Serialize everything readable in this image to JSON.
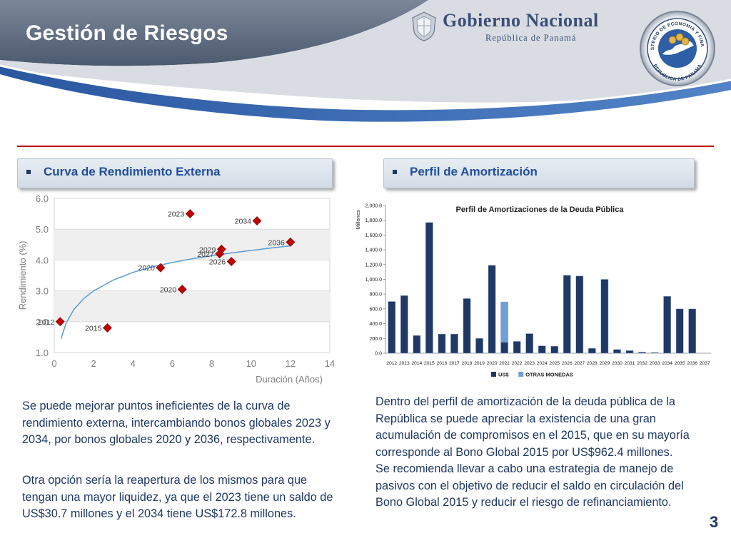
{
  "slide": {
    "title": "Gestión de Riesgos",
    "page_number": "3"
  },
  "header": {
    "gov_name": "Gobierno Nacional",
    "gov_sub": "República de Panamá",
    "seal_top_text": "MINISTERIO DE ECONOMIA Y FINANZAS",
    "seal_bottom_text": "REPUBLICA DE PANAMA",
    "colors": {
      "title_bar": "#5c6b80",
      "swoosh_blue": "#2e5ea6",
      "divider": "#c00000"
    }
  },
  "left_section": {
    "header": "Curva de Rendimiento Externa",
    "paragraph1": "Se puede mejorar puntos ineficientes de la curva de rendimiento externa, intercambiando bonos globales 2023 y 2034, por bonos globales 2020 y 2036, respectivamente.",
    "paragraph2": "Otra opción sería la reapertura de los mismos para que tengan una mayor liquidez, ya que  el 2023 tiene un saldo de US$30.7 millones y el 2034 tiene US$172.8 millones."
  },
  "right_section": {
    "header": "Perfil  de Amortización",
    "paragraph1": "Dentro del perfil de amortización de la deuda pública de la República se puede apreciar la existencia de una gran acumulación de compromisos en el 2015, que en su mayoría corresponde al Bono Global 2015 por US$962.4 millones. Se recomienda llevar  a cabo una estrategia de manejo de pasivos con el objetivo de reducir el saldo en circulación del Bono Global 2015 y reducir el riesgo de refinanciamiento."
  },
  "chart_data": [
    {
      "type": "scatter",
      "title": "",
      "xlabel": "Duración (Años)",
      "ylabel": "Rendimiento (%)",
      "xlim": [
        0,
        14
      ],
      "ylim": [
        1.0,
        6.0
      ],
      "x_ticks": [
        "0",
        "2",
        "4",
        "6",
        "8",
        "10",
        "12",
        "14"
      ],
      "y_ticks": [
        "1.0",
        "2.0",
        "3.0",
        "4.0",
        "5.0",
        "6.0"
      ],
      "grid": "horizontal bands",
      "point_color": "#c00000",
      "curve_color": "#5b9bd5",
      "points": [
        {
          "label": "2012",
          "x": 0.3,
          "y": 2.0
        },
        {
          "label": "2015",
          "x": 2.7,
          "y": 1.8
        },
        {
          "label": "2020",
          "x": 5.4,
          "y": 3.75
        },
        {
          "label": "2020",
          "x": 6.5,
          "y": 3.05
        },
        {
          "label": "2023",
          "x": 6.9,
          "y": 5.5
        },
        {
          "label": "2029",
          "x": 8.5,
          "y": 4.35
        },
        {
          "label": "2027",
          "x": 8.4,
          "y": 4.2
        },
        {
          "label": "2026",
          "x": 9.0,
          "y": 3.95
        },
        {
          "label": "2034",
          "x": 10.3,
          "y": 5.27
        },
        {
          "label": "2036",
          "x": 12.0,
          "y": 4.58
        }
      ],
      "trend_curve": {
        "x": [
          0.35,
          0.6,
          1.0,
          1.5,
          2.0,
          3.0,
          4.0,
          5.0,
          6.0,
          7.0,
          8.0,
          9.0,
          10.0,
          11.0,
          12.0
        ],
        "y": [
          1.45,
          1.95,
          2.4,
          2.75,
          3.0,
          3.35,
          3.6,
          3.78,
          3.92,
          4.04,
          4.14,
          4.23,
          4.31,
          4.39,
          4.46
        ]
      }
    },
    {
      "type": "bar",
      "stacked": true,
      "title": "Perfil de Amortizaciones de la Deuda Pública",
      "xlabel": "",
      "ylabel": "Millones",
      "ylim": [
        0,
        2000
      ],
      "y_ticks": [
        "0.0",
        "200.0",
        "400.0",
        "600.0",
        "800.0",
        "1,000.0",
        "1,200.0",
        "1,400.0",
        "1,600.0",
        "1,800.0",
        "2,000.0"
      ],
      "legend_position": "bottom",
      "categories": [
        "2012",
        "2013",
        "2014",
        "2015",
        "2016",
        "2017",
        "2018",
        "2019",
        "2020",
        "2021",
        "2022",
        "2023",
        "2024",
        "2025",
        "2026",
        "2027",
        "2028",
        "2029",
        "2030",
        "2031",
        "2032",
        "2033",
        "2034",
        "2035",
        "2036",
        "2037"
      ],
      "series": [
        {
          "name": "US$",
          "color": "#1f3864",
          "values": [
            700,
            780,
            240,
            1770,
            260,
            260,
            740,
            200,
            1190,
            150,
            160,
            265,
            100,
            95,
            1055,
            1045,
            65,
            1000,
            50,
            35,
            15,
            10,
            770,
            600,
            600,
            0
          ]
        },
        {
          "name": "OTRAS MONEDAS",
          "color": "#6f9fd8",
          "values": [
            0,
            0,
            0,
            0,
            0,
            0,
            0,
            0,
            0,
            545,
            0,
            0,
            0,
            0,
            0,
            0,
            0,
            0,
            0,
            0,
            0,
            0,
            0,
            0,
            0,
            0
          ]
        }
      ]
    }
  ]
}
